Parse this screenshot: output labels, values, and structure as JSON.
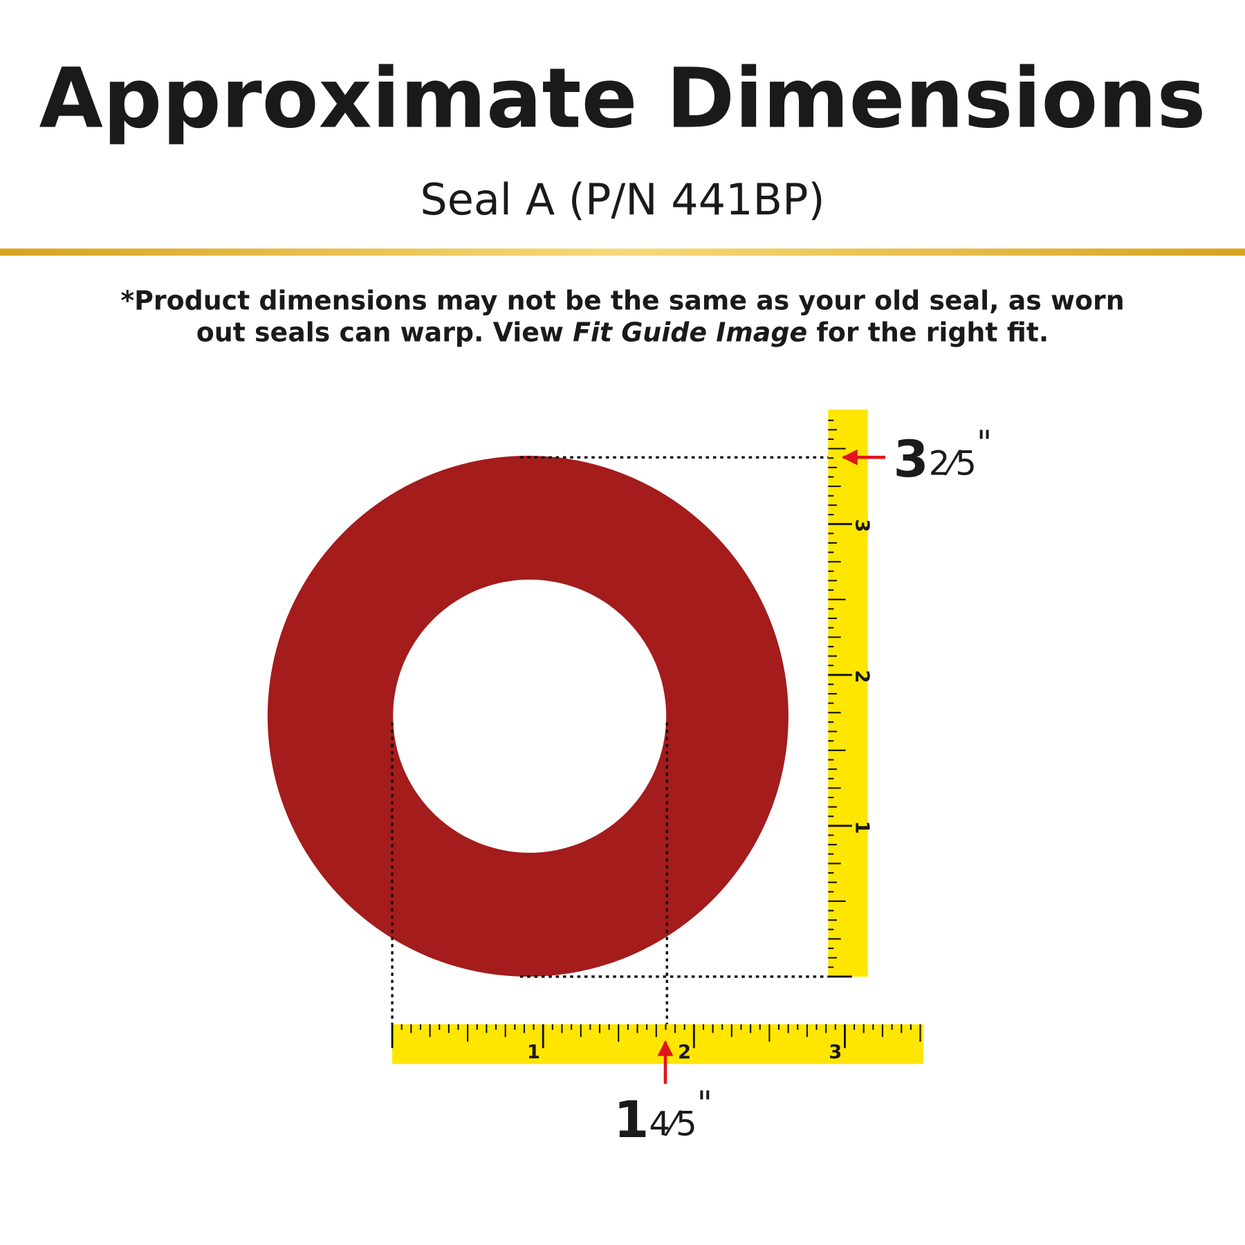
{
  "header": {
    "title": "Approximate Dimensions",
    "subtitle": "Seal A (P/N 441BP)"
  },
  "disclaimer": {
    "line1": "*Product dimensions may not be the same as your old seal, as worn",
    "line2_start": "out seals can warp. View ",
    "line2_italic": "Fit Guide Image",
    "line2_end": " for the right fit."
  },
  "vertical_ruler": {
    "labels": [
      "1",
      "2",
      "3"
    ]
  },
  "horizontal_ruler": {
    "labels": [
      "1",
      "2",
      "3"
    ]
  },
  "height_label": {
    "whole": "3",
    "fraction": "2⁄5",
    "unit": "\""
  },
  "width_label": {
    "whole": "1",
    "fraction": "4⁄5",
    "unit": "\""
  }
}
